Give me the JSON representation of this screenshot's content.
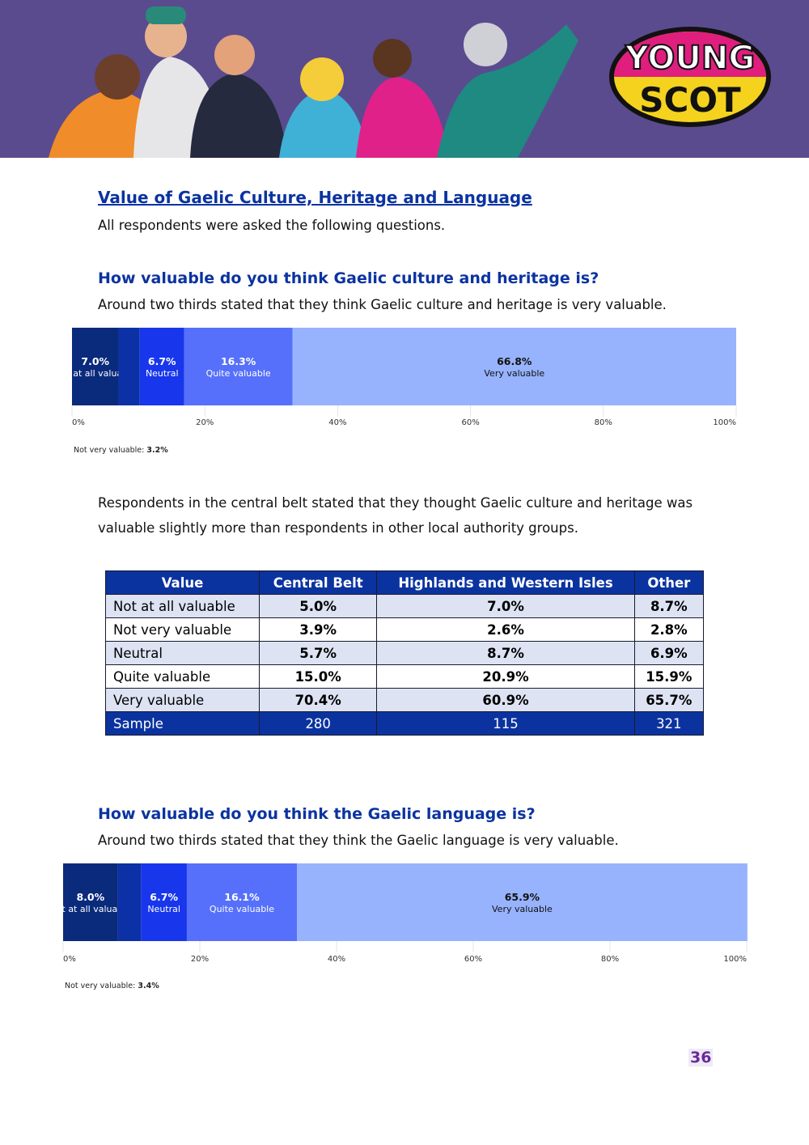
{
  "header": {
    "logo": [
      "YOUNG",
      "SCOT"
    ]
  },
  "title": "Value of Gaelic Culture, Heritage and Language",
  "intro": "All respondents were asked the following questions.",
  "sections": [
    {
      "heading": "How valuable do you think Gaelic culture and heritage is?",
      "text": "Around two thirds stated that they think Gaelic culture and heritage is very valuable."
    },
    {
      "heading": "How valuable do you think the Gaelic language is?",
      "text": "Around two thirds stated that they think the Gaelic language is very valuable."
    }
  ],
  "paragraph": "Respondents in the central belt stated that they thought Gaelic culture and heritage was valuable slightly more than respondents in other local authority groups.",
  "table": {
    "header": [
      "Value",
      "Central Belt",
      "Highlands and Western Isles",
      "Other"
    ],
    "rows": [
      [
        "Not at all valuable",
        "5.0%",
        "7.0%",
        "8.7%"
      ],
      [
        "Not very valuable",
        "3.9%",
        "2.6%",
        "2.8%"
      ],
      [
        "Neutral",
        "5.7%",
        "8.7%",
        "6.9%"
      ],
      [
        "Quite valuable",
        "15.0%",
        "20.9%",
        "15.9%"
      ],
      [
        "Very valuable",
        "70.4%",
        "60.9%",
        "65.7%"
      ],
      [
        "Sample",
        "280",
        "115",
        "321"
      ]
    ]
  },
  "page_number": "36",
  "chart_data": [
    {
      "type": "stacked_bar",
      "series": [
        {
          "name": "Not at all valuable",
          "color": "#0a2a7c",
          "values": [
            7.0
          ],
          "value_labels": [
            "7.0%"
          ]
        },
        {
          "name": "Not very valuable",
          "color": "#0c30a6",
          "values": [
            3.2
          ],
          "value_labels": [
            "3.2%"
          ]
        },
        {
          "name": "Neutral",
          "color": "#1836ec",
          "values": [
            6.7
          ],
          "value_labels": [
            "6.7%"
          ]
        },
        {
          "name": "Quite valuable",
          "color": "#5670fb",
          "values": [
            16.3
          ],
          "value_labels": [
            "16.3%"
          ]
        },
        {
          "name": "Very valuable",
          "color": "#97b3fd",
          "values": [
            66.8
          ],
          "value_labels": [
            "66.8%"
          ]
        }
      ],
      "xlim": [
        0,
        100
      ],
      "xticks": [
        {
          "value": 0,
          "label": "0%"
        },
        {
          "value": 20,
          "label": "20%"
        },
        {
          "value": 40,
          "label": "40%"
        },
        {
          "value": 60,
          "label": "60%"
        },
        {
          "value": 80,
          "label": "80%"
        },
        {
          "value": 100,
          "label": "100%"
        }
      ]
    },
    {
      "type": "stacked_bar",
      "series": [
        {
          "name": "Not at all valuable",
          "color": "#0a2a7c",
          "values": [
            8.0
          ],
          "value_labels": [
            "8.0%"
          ]
        },
        {
          "name": "Not very valuable",
          "color": "#0c30a6",
          "values": [
            3.4
          ],
          "value_labels": [
            "3.4%"
          ]
        },
        {
          "name": "Neutral",
          "color": "#1836ec",
          "values": [
            6.7
          ],
          "value_labels": [
            "6.7%"
          ]
        },
        {
          "name": "Quite valuable",
          "color": "#5670fb",
          "values": [
            16.1
          ],
          "value_labels": [
            "16.1%"
          ]
        },
        {
          "name": "Very valuable",
          "color": "#97b3fd",
          "values": [
            65.9
          ],
          "value_labels": [
            "65.9%"
          ]
        }
      ],
      "xlim": [
        0,
        100
      ],
      "xticks": [
        {
          "value": 0,
          "label": "0%"
        },
        {
          "value": 20,
          "label": "20%"
        },
        {
          "value": 40,
          "label": "40%"
        },
        {
          "value": 60,
          "label": "60%"
        },
        {
          "value": 80,
          "label": "80%"
        },
        {
          "value": 100,
          "label": "100%"
        }
      ]
    }
  ]
}
